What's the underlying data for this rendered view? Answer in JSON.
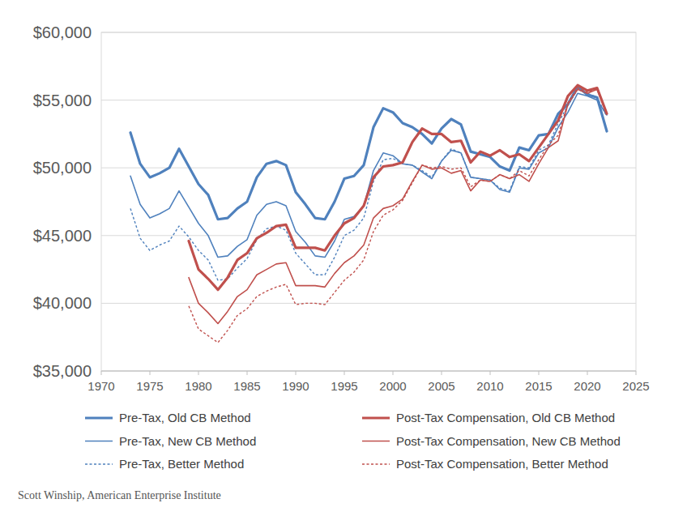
{
  "chart_data": {
    "type": "line",
    "source": "Scott Winship, American Enterprise Institute",
    "x": [
      1973,
      1974,
      1975,
      1976,
      1977,
      1978,
      1979,
      1980,
      1981,
      1982,
      1983,
      1984,
      1985,
      1986,
      1987,
      1988,
      1989,
      1990,
      1991,
      1992,
      1993,
      1994,
      1995,
      1996,
      1997,
      1998,
      1999,
      2000,
      2001,
      2002,
      2003,
      2004,
      2005,
      2006,
      2007,
      2008,
      2009,
      2010,
      2011,
      2012,
      2013,
      2014,
      2015,
      2016,
      2017,
      2018,
      2019,
      2020,
      2021,
      2022
    ],
    "xlim": [
      1970,
      2025
    ],
    "xticks": [
      1970,
      1975,
      1980,
      1985,
      1990,
      1995,
      2000,
      2005,
      2010,
      2015,
      2020,
      2025
    ],
    "ylim": [
      35000,
      60000
    ],
    "yticks": [
      {
        "value": 35000,
        "label": "$35,000"
      },
      {
        "value": 40000,
        "label": "$40,000"
      },
      {
        "value": 45000,
        "label": "$45,000"
      },
      {
        "value": 50000,
        "label": "$50,000"
      },
      {
        "value": 55000,
        "label": "$55,000"
      },
      {
        "value": 60000,
        "label": "$60,000"
      }
    ],
    "grid": true,
    "legend": "bottom",
    "series": [
      {
        "name": "Pre-Tax, Old CB Method",
        "color": "#4f81bd",
        "line_style": "solid",
        "values": [
          52600,
          50300,
          49300,
          49600,
          50000,
          51400,
          50100,
          48800,
          48000,
          46200,
          46300,
          47000,
          47500,
          49300,
          50300,
          50500,
          50200,
          48200,
          47300,
          46300,
          46200,
          47500,
          49200,
          49400,
          50200,
          53000,
          54400,
          54100,
          53300,
          53000,
          52500,
          51800,
          52900,
          53600,
          53200,
          51200,
          51000,
          50800,
          50100,
          49800,
          51500,
          51300,
          52400,
          52500,
          54000,
          54700,
          56000,
          55400,
          55200,
          52700
        ]
      },
      {
        "name": "Pre-Tax, New CB Method",
        "color": "#4f81bd",
        "line_style": "solid",
        "values": [
          49400,
          47300,
          46300,
          46600,
          47000,
          48300,
          47100,
          45900,
          45000,
          43400,
          43500,
          44200,
          44700,
          46500,
          47300,
          47500,
          47200,
          45300,
          44500,
          43500,
          43400,
          44600,
          46200,
          46400,
          47200,
          49800,
          51100,
          50900,
          50300,
          50200,
          49700,
          49200,
          50500,
          51300,
          51100,
          49300,
          49200,
          49100,
          48400,
          48200,
          50000,
          49900,
          51100,
          51500,
          53000,
          54100,
          55500,
          55300,
          55000,
          53900
        ]
      },
      {
        "name": "Pre-Tax, Better Method",
        "color": "#4f81bd",
        "line_style": "dashed",
        "values": [
          47000,
          44800,
          43900,
          44300,
          44600,
          45700,
          44900,
          43900,
          43200,
          41700,
          41800,
          42600,
          43300,
          44700,
          45500,
          45700,
          45400,
          43700,
          42900,
          42100,
          42100,
          43400,
          45000,
          45400,
          46300,
          49000,
          50600,
          50700,
          50300,
          50200,
          49800,
          49300,
          50500,
          51400,
          51100,
          49300,
          49200,
          49100,
          48500,
          48300,
          50100,
          50000,
          51300,
          51700,
          53300,
          54600,
          55800,
          55500,
          55200,
          53800
        ]
      },
      {
        "name": "Post-Tax Compensation, Old CB Method",
        "color": "#c0504d",
        "line_style": "solid",
        "values": [
          null,
          null,
          null,
          null,
          null,
          null,
          44600,
          42500,
          41800,
          41000,
          41900,
          43200,
          43700,
          44800,
          45200,
          45700,
          45800,
          44100,
          44100,
          44100,
          43900,
          45000,
          45900,
          46300,
          47200,
          49300,
          50100,
          50200,
          50400,
          51900,
          52900,
          52500,
          52500,
          51900,
          52000,
          50400,
          51200,
          50900,
          51300,
          50800,
          51000,
          50500,
          51500,
          52500,
          53500,
          55300,
          56100,
          55700,
          55900,
          54000
        ]
      },
      {
        "name": "Post-Tax Compensation, New CB Method",
        "color": "#c0504d",
        "line_style": "solid",
        "values": [
          null,
          null,
          null,
          null,
          null,
          null,
          41900,
          40000,
          39300,
          38500,
          39400,
          40500,
          41000,
          42100,
          42500,
          42900,
          43000,
          41300,
          41300,
          41300,
          41200,
          42200,
          43000,
          43500,
          44300,
          46300,
          47000,
          47200,
          47700,
          49000,
          50200,
          49900,
          50000,
          49600,
          49800,
          48300,
          49100,
          49000,
          49500,
          49200,
          49500,
          49000,
          50300,
          51500,
          52000,
          54700,
          55800,
          55500,
          55800,
          54000
        ]
      },
      {
        "name": "Post-Tax Compensation, Better Method",
        "color": "#c0504d",
        "line_style": "dashed",
        "values": [
          null,
          null,
          null,
          null,
          null,
          null,
          39800,
          38100,
          37600,
          37100,
          38000,
          39100,
          39600,
          40500,
          40900,
          41200,
          41400,
          39900,
          40000,
          40000,
          39900,
          40800,
          41700,
          42300,
          43200,
          45300,
          46500,
          46900,
          47600,
          48900,
          50200,
          50000,
          50100,
          49900,
          50000,
          48600,
          49100,
          49000,
          49500,
          49200,
          49800,
          49400,
          50600,
          51700,
          52400,
          54800,
          55900,
          55600,
          55800,
          54000
        ]
      }
    ]
  }
}
